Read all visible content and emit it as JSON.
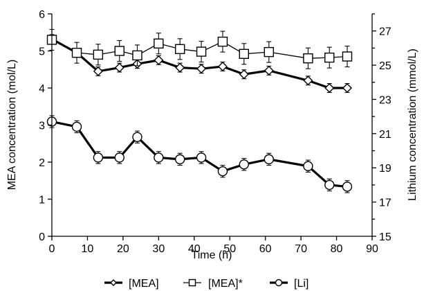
{
  "chart_data": {
    "type": "line",
    "xlabel": "Time (h)",
    "ylabel": "MEA concentration (mol/L)",
    "y2label": "Lithium concentration (mmol/L)",
    "xlim": [
      0,
      90
    ],
    "ylim": [
      0,
      6
    ],
    "y2lim": [
      15,
      28
    ],
    "x_ticks": [
      "0",
      "10",
      "20",
      "30",
      "40",
      "50",
      "60",
      "70",
      "80",
      "90"
    ],
    "y_ticks": [
      "0",
      "1",
      "2",
      "3",
      "4",
      "5",
      "6"
    ],
    "y2_ticks": [
      "15",
      "17",
      "19",
      "21",
      "23",
      "25",
      "27"
    ],
    "grid": false,
    "legend_position": "bottom",
    "series": [
      {
        "name": "[MEA]",
        "axis": "left",
        "marker": "diamond",
        "line_style": "thick",
        "x": [
          0,
          7,
          13,
          19,
          24,
          30,
          36,
          42,
          48,
          54,
          61,
          72,
          78,
          83
        ],
        "y": [
          5.32,
          4.95,
          4.45,
          4.55,
          4.65,
          4.75,
          4.55,
          4.52,
          4.58,
          4.37,
          4.47,
          4.2,
          4.0,
          4.0
        ],
        "err": [
          0.12,
          0.12,
          0.12,
          0.12,
          0.12,
          0.12,
          0.12,
          0.12,
          0.12,
          0.12,
          0.12,
          0.12,
          0.12,
          0.12
        ]
      },
      {
        "name": "[MEA]*",
        "axis": "left",
        "marker": "square",
        "line_style": "thin",
        "x": [
          0,
          7,
          13,
          19,
          24,
          30,
          36,
          42,
          48,
          54,
          61,
          72,
          78,
          83
        ],
        "y": [
          5.3,
          4.95,
          4.9,
          5.0,
          4.88,
          5.2,
          5.05,
          4.98,
          5.25,
          4.92,
          4.97,
          4.8,
          4.82,
          4.85
        ],
        "err": [
          0.28,
          0.28,
          0.28,
          0.28,
          0.28,
          0.28,
          0.28,
          0.28,
          0.28,
          0.28,
          0.28,
          0.28,
          0.28,
          0.28
        ]
      },
      {
        "name": "[Li]",
        "axis": "right",
        "marker": "circle",
        "line_style": "thick",
        "x": [
          0,
          7,
          13,
          19,
          24,
          30,
          36,
          42,
          48,
          54,
          61,
          72,
          78,
          83
        ],
        "y": [
          21.7,
          21.4,
          19.6,
          19.6,
          20.8,
          19.6,
          19.5,
          19.6,
          18.8,
          19.2,
          19.5,
          19.1,
          18.0,
          17.9
        ],
        "err": [
          0.35,
          0.35,
          0.35,
          0.35,
          0.35,
          0.35,
          0.35,
          0.35,
          0.35,
          0.35,
          0.35,
          0.35,
          0.35,
          0.35
        ]
      }
    ]
  }
}
